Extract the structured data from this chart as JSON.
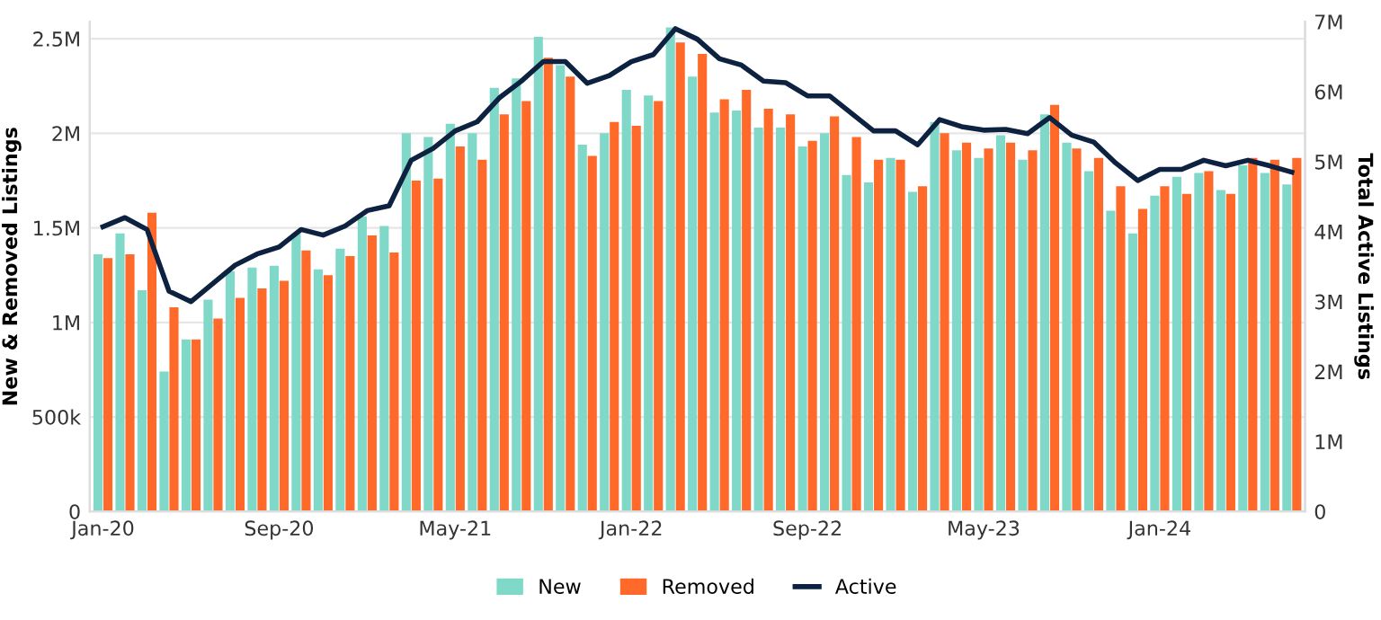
{
  "chart_data": {
    "type": "bar",
    "categories": [
      "Jan-20",
      null,
      null,
      null,
      null,
      null,
      null,
      null,
      "Sep-20",
      null,
      null,
      null,
      null,
      null,
      null,
      null,
      "May-21",
      null,
      null,
      null,
      null,
      null,
      null,
      null,
      "Jan-22",
      null,
      null,
      null,
      null,
      null,
      null,
      null,
      "Sep-22",
      null,
      null,
      null,
      null,
      null,
      null,
      null,
      "May-23",
      null,
      null,
      null,
      null,
      null,
      null,
      null,
      "Jan-24",
      null,
      null,
      null,
      null,
      null,
      null
    ],
    "series": [
      {
        "name": "New",
        "color": "#7fd8c8",
        "values": [
          1360000,
          1470000,
          1170000,
          740000,
          910000,
          1120000,
          1270000,
          1290000,
          1300000,
          1470000,
          1280000,
          1390000,
          1560000,
          1510000,
          2000000,
          1980000,
          2050000,
          2000000,
          2240000,
          2290000,
          2510000,
          2360000,
          1940000,
          2000000,
          2230000,
          2200000,
          2560000,
          2300000,
          2110000,
          2120000,
          2030000,
          2030000,
          1930000,
          2000000,
          1780000,
          1740000,
          1870000,
          1690000,
          2060000,
          1910000,
          1870000,
          1990000,
          1860000,
          2100000,
          1950000,
          1800000,
          1590000,
          1470000,
          1670000,
          1770000,
          1790000,
          1700000,
          1830000,
          1790000,
          1730000
        ]
      },
      {
        "name": "Removed",
        "color": "#ff6a2b",
        "values": [
          1340000,
          1360000,
          1580000,
          1080000,
          910000,
          1020000,
          1130000,
          1180000,
          1220000,
          1380000,
          1250000,
          1350000,
          1460000,
          1370000,
          1750000,
          1760000,
          1930000,
          1860000,
          2100000,
          2170000,
          2400000,
          2300000,
          1880000,
          2060000,
          2040000,
          2170000,
          2480000,
          2420000,
          2180000,
          2230000,
          2130000,
          2100000,
          1960000,
          2090000,
          1980000,
          1860000,
          1860000,
          1720000,
          2000000,
          1950000,
          1920000,
          1950000,
          1910000,
          2150000,
          1920000,
          1870000,
          1720000,
          1600000,
          1720000,
          1680000,
          1800000,
          1680000,
          1870000,
          1860000,
          1870000
        ]
      },
      {
        "name": "Active",
        "color": "#0d2240",
        "type": "line",
        "axis": "y2",
        "values": [
          4070000,
          4200000,
          4030000,
          3150000,
          3000000,
          3260000,
          3520000,
          3680000,
          3780000,
          4030000,
          3950000,
          4080000,
          4300000,
          4370000,
          5020000,
          5190000,
          5440000,
          5570000,
          5910000,
          6150000,
          6430000,
          6430000,
          6120000,
          6230000,
          6430000,
          6530000,
          6900000,
          6750000,
          6470000,
          6380000,
          6150000,
          6130000,
          5940000,
          5940000,
          5690000,
          5440000,
          5440000,
          5240000,
          5600000,
          5500000,
          5450000,
          5460000,
          5400000,
          5630000,
          5380000,
          5280000,
          4980000,
          4730000,
          4890000,
          4890000,
          5020000,
          4940000,
          5020000,
          4940000,
          4850000
        ]
      }
    ],
    "ylabel": "New & Removed Listings",
    "y2label": "Total Active Listings",
    "ylim": [
      0,
      2590000
    ],
    "yticks": [
      0,
      {
        "value": 500000,
        "label": "500k"
      },
      {
        "value": 1000000,
        "label": "1M"
      },
      {
        "value": 1500000,
        "label": "1.5M"
      },
      {
        "value": 2000000,
        "label": "2M"
      },
      {
        "value": 2500000,
        "label": "2.5M"
      }
    ],
    "y2lim": [
      0,
      7000000
    ],
    "y2ticks": [
      0,
      {
        "value": 1000000,
        "label": "1M"
      },
      {
        "value": 2000000,
        "label": "2M"
      },
      {
        "value": 3000000,
        "label": "3M"
      },
      {
        "value": 4000000,
        "label": "4M"
      },
      {
        "value": 5000000,
        "label": "5M"
      },
      {
        "value": 6000000,
        "label": "6M"
      },
      {
        "value": 7000000,
        "label": "7M"
      }
    ],
    "grid": "y",
    "legend": "bottom",
    "marker": "none",
    "line_style": "solid"
  }
}
